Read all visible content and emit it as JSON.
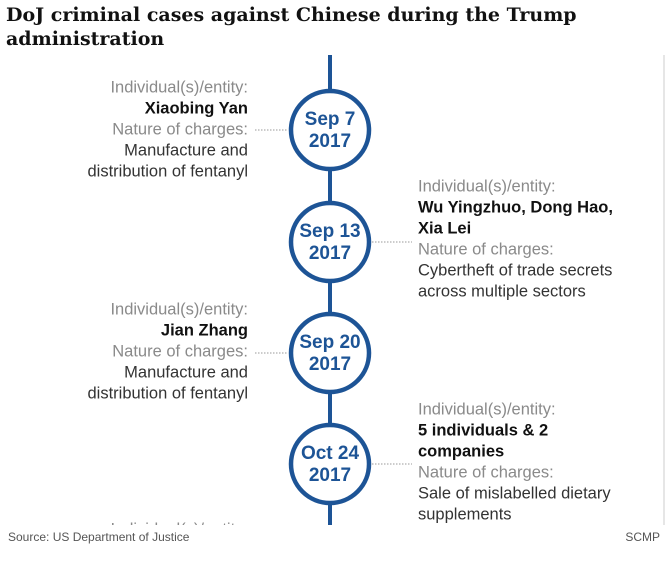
{
  "header": {
    "title_lines": [
      "DoJ criminal cases against Chinese during the Trump",
      "administration"
    ]
  },
  "events": [
    {
      "date": "Sep 7",
      "year": "2017",
      "entity_label": "Individual(s)/entity:",
      "name_lines": [
        "Xiaobing Yan"
      ],
      "charges_label": "Nature of charges:",
      "charges_lines": [
        "Manufacture and",
        "distribution of fentanyl"
      ]
    },
    {
      "date": "Sep 13",
      "year": "2017",
      "entity_label": "Individual(s)/entity:",
      "name_lines": [
        "Wu Yingzhuo, Dong Hao,",
        "Xia Lei"
      ],
      "charges_label": "Nature of charges:",
      "charges_lines": [
        "Cybertheft of trade secrets",
        "across multiple sectors"
      ]
    },
    {
      "date": "Sep 20",
      "year": "2017",
      "entity_label": "Individual(s)/entity:",
      "name_lines": [
        "Jian Zhang"
      ],
      "charges_label": "Nature of charges:",
      "charges_lines": [
        "Manufacture and",
        "distribution of fentanyl"
      ]
    },
    {
      "date": "Oct 24",
      "year": "2017",
      "entity_label": "Individual(s)/entity:",
      "name_lines": [
        "5 individuals & 2",
        "companies"
      ],
      "charges_label": "Nature of charges:",
      "charges_lines": [
        "Sale of mislabelled dietary",
        "supplements"
      ]
    }
  ],
  "partial_label": "Individual(s)/entity:",
  "footer": {
    "source": "Source: US Department of Justice",
    "brand": "SCMP"
  }
}
